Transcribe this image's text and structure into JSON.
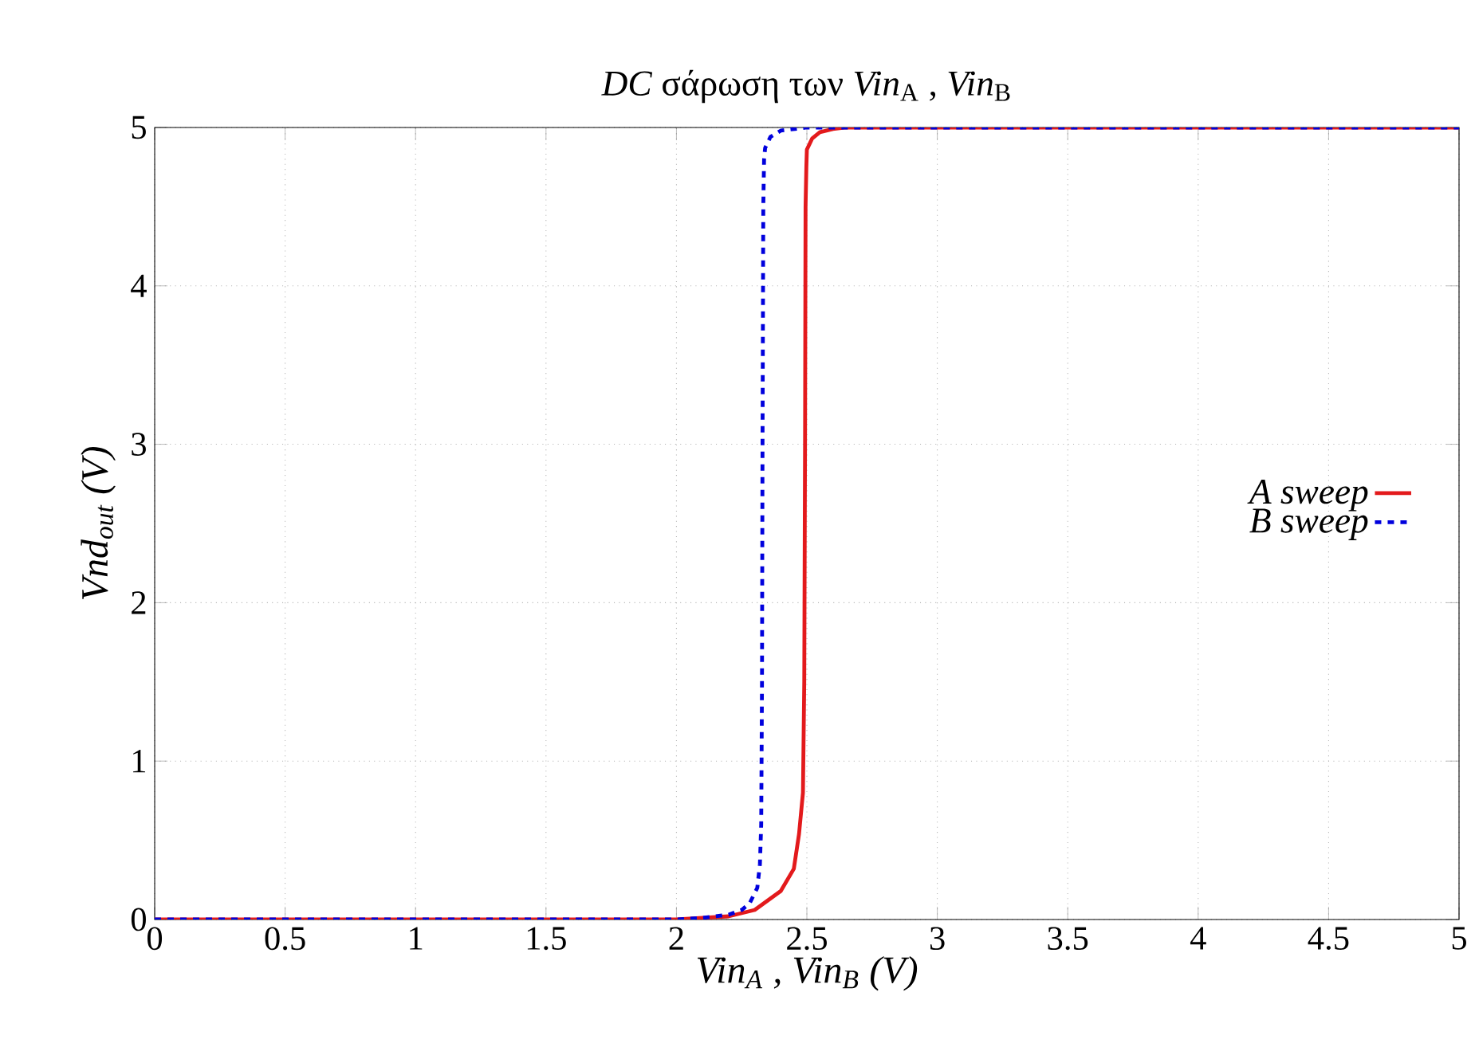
{
  "chart_data": {
    "type": "line",
    "title": "*DC* σάρωση των  *Vin*$_{A}$ , *Vin*$_{B}$",
    "xlabel": "Vin$_{A}$  ,  Vin$_{B}$ (V)",
    "ylabel": "Vnd$_{out}$ (V)",
    "xlim": [
      0,
      5
    ],
    "ylim": [
      0,
      5
    ],
    "xticks": [
      0,
      0.5,
      1,
      1.5,
      2,
      2.5,
      3,
      3.5,
      4,
      4.5,
      5
    ],
    "yticks": [
      0,
      1,
      2,
      3,
      4,
      5
    ],
    "grid": true,
    "legend": "right",
    "series": [
      {
        "name": "A sweep",
        "color": "#e31a1c",
        "line_style": "solid",
        "x": [
          0,
          1,
          2,
          2.1,
          2.2,
          2.3,
          2.4,
          2.45,
          2.47,
          2.485,
          2.49,
          2.493,
          2.495,
          2.498,
          2.5,
          2.52,
          2.55,
          2.6,
          2.65,
          3,
          4,
          5
        ],
        "values": [
          0,
          0,
          0,
          0.01,
          0.02,
          0.06,
          0.18,
          0.32,
          0.54,
          0.8,
          1.5,
          3,
          4.5,
          4.75,
          4.86,
          4.93,
          4.97,
          4.99,
          5,
          5,
          5,
          5
        ]
      },
      {
        "name": "B sweep",
        "color": "#0000dd",
        "line_style": "dashed",
        "x": [
          0,
          1,
          2,
          2.1,
          2.2,
          2.25,
          2.28,
          2.31,
          2.32,
          2.325,
          2.328,
          2.33,
          2.333,
          2.336,
          2.34,
          2.36,
          2.4,
          2.45,
          2.5,
          3,
          4,
          5
        ],
        "values": [
          0,
          0,
          0,
          0.01,
          0.03,
          0.06,
          0.1,
          0.2,
          0.35,
          0.6,
          1.5,
          3,
          4.5,
          4.8,
          4.87,
          4.94,
          4.98,
          4.99,
          5,
          5,
          5,
          5
        ]
      }
    ]
  }
}
